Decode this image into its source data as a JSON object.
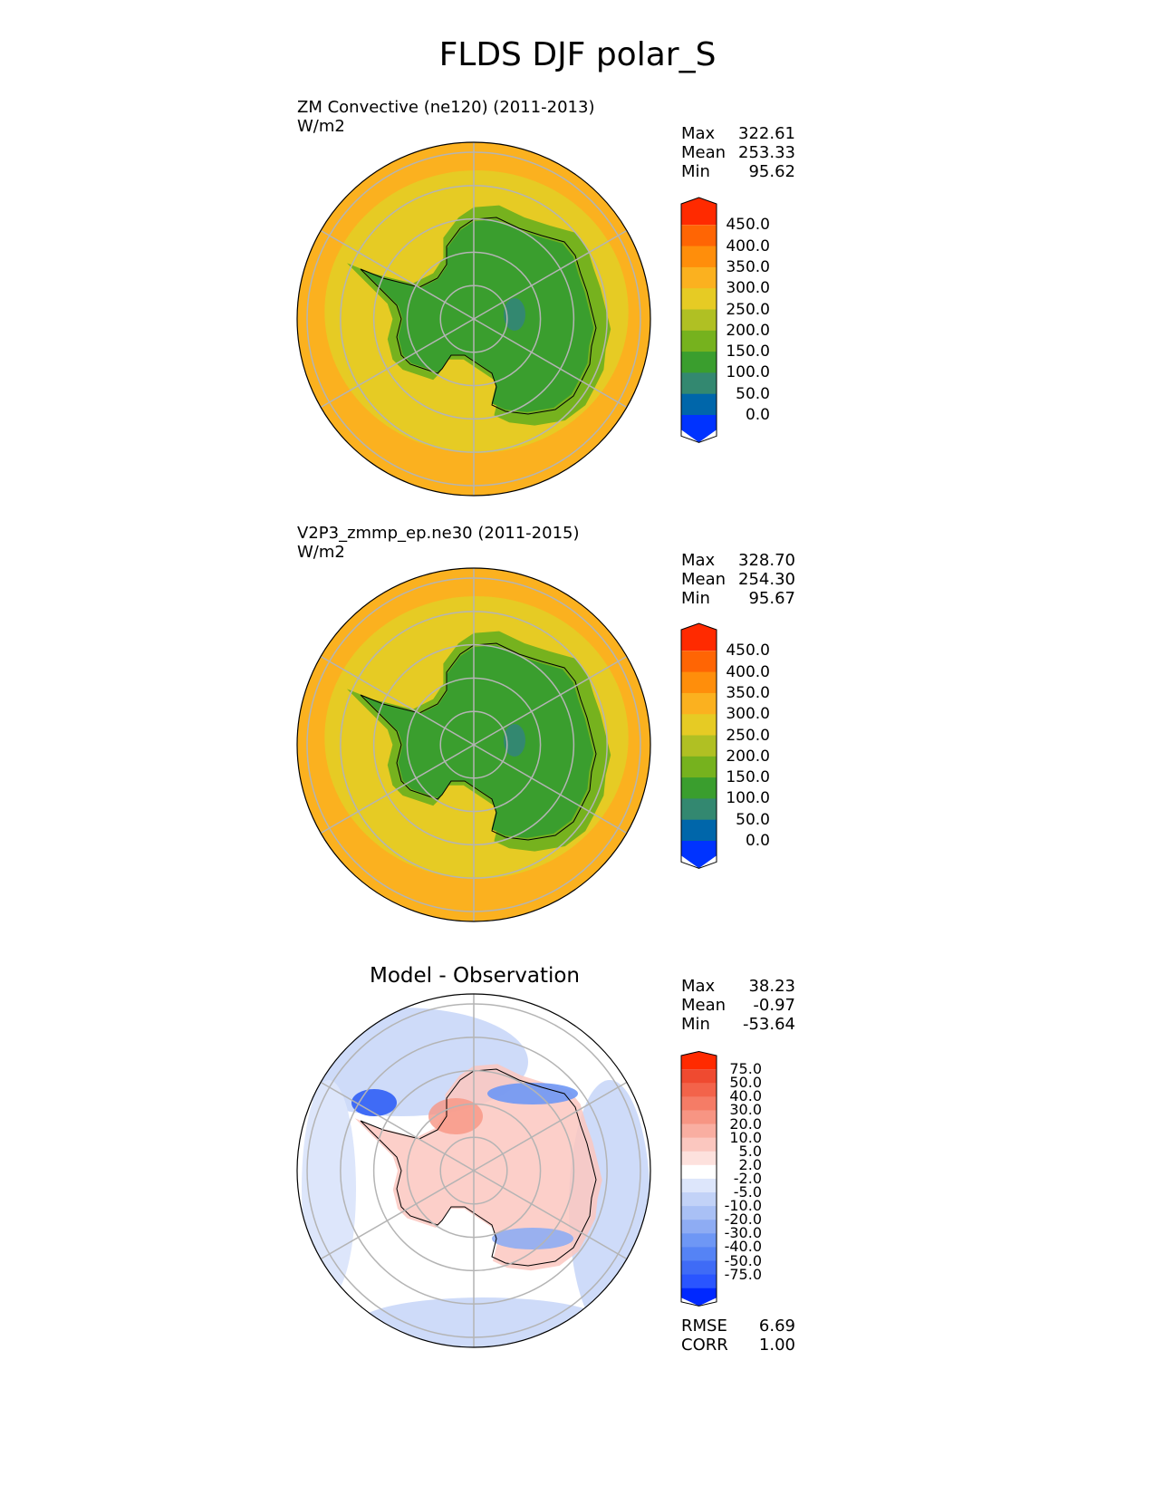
{
  "figure": {
    "title": "FLDS DJF polar_S"
  },
  "colors": {
    "abs_levels": [
      "#0033ff",
      "#0066aa",
      "#338870",
      "#3a9e2e",
      "#76b21e",
      "#b0c023",
      "#e6cb24",
      "#fbb11f",
      "#ff8e0b",
      "#ff6504",
      "#ff2a00"
    ],
    "diff_levels": [
      "#0028ff",
      "#2a55ff",
      "#3f6bf6",
      "#5583f5",
      "#6e97f5",
      "#8eacf3",
      "#a9c0f5",
      "#c2d2f7",
      "#dde6fb",
      "#ffffff",
      "#fde1dd",
      "#fbc7bf",
      "#f9aea1",
      "#f79583",
      "#f57c66",
      "#f3634a",
      "#ef4a30",
      "#ff2a00"
    ],
    "land_lightgreen": "#76b21e",
    "land_green": "#3a9e2e",
    "land_teal": "#338870",
    "ocean_yellow": "#e6cb24",
    "ocean_orange": "#fbb11f",
    "grid": "#b4b4b4"
  },
  "chart_data": [
    {
      "type": "heatmap",
      "projection": "polar stereographic (south)",
      "title": "ZM Convective (ne120) (2011-2013)",
      "units": "W/m2",
      "stats": {
        "max_label": "Max",
        "max": "322.61",
        "mean_label": "Mean",
        "mean": "253.33",
        "min_label": "Min",
        "min": "95.62"
      },
      "colorbar_levels": [
        "450.0",
        "400.0",
        "350.0",
        "300.0",
        "250.0",
        "200.0",
        "150.0",
        "100.0",
        "50.0",
        "0.0"
      ]
    },
    {
      "type": "heatmap",
      "projection": "polar stereographic (south)",
      "title": "V2P3_zmmp_ep.ne30 (2011-2015)",
      "units": "W/m2",
      "stats": {
        "max_label": "Max",
        "max": "328.70",
        "mean_label": "Mean",
        "mean": "254.30",
        "min_label": "Min",
        "min": "95.67"
      },
      "colorbar_levels": [
        "450.0",
        "400.0",
        "350.0",
        "300.0",
        "250.0",
        "200.0",
        "150.0",
        "100.0",
        "50.0",
        "0.0"
      ]
    },
    {
      "type": "heatmap",
      "projection": "polar stereographic (south)",
      "title": "Model - Observation",
      "stats": {
        "max_label": "Max",
        "max": "38.23",
        "mean_label": "Mean",
        "mean": "-0.97",
        "min_label": "Min",
        "min": "-53.64"
      },
      "colorbar_levels": [
        "75.0",
        "50.0",
        "40.0",
        "30.0",
        "20.0",
        "10.0",
        "5.0",
        "2.0",
        "-2.0",
        "-5.0",
        "-10.0",
        "-20.0",
        "-30.0",
        "-40.0",
        "-50.0",
        "-75.0"
      ],
      "metrics": {
        "rmse_label": "RMSE",
        "rmse": "6.69",
        "corr_label": "CORR",
        "corr": "1.00"
      }
    }
  ]
}
